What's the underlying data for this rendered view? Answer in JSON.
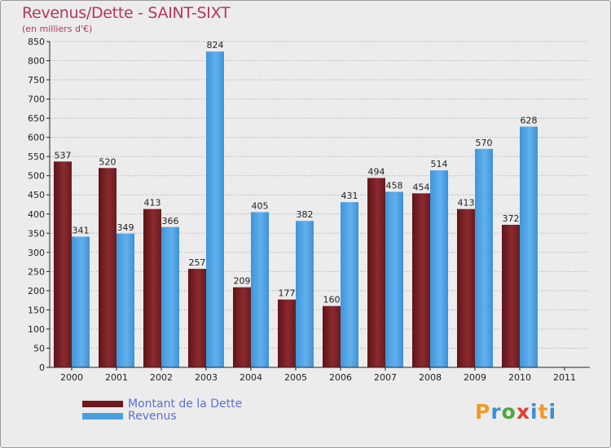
{
  "title": "Revenus/Dette - SAINT-SIXT",
  "subtitle": "(en milliers d'€)",
  "logo": {
    "text": "Proxiti",
    "letters": [
      "P",
      "r",
      "o",
      "x",
      "i",
      "t",
      "i"
    ],
    "colors": [
      "#f09a2a",
      "#3b8fd4",
      "#4aa83c",
      "#e23c2c",
      "#3b8fd4",
      "#f09a2a",
      "#3b8fd4"
    ]
  },
  "colors": {
    "dette": "#7a1f24",
    "dette_light": "#9e3b40",
    "revenus": "#4a9fe0",
    "revenus_light": "#6fb8f0",
    "axis": "#222222",
    "grid": "#9a9a9a"
  },
  "chart_data": {
    "type": "bar",
    "title": "Revenus/Dette - SAINT-SIXT",
    "ylabel": "(en milliers d'€)",
    "xlabel": "",
    "ylim": [
      0,
      850
    ],
    "yticks": [
      0,
      50,
      100,
      150,
      200,
      250,
      300,
      350,
      400,
      450,
      500,
      550,
      600,
      650,
      700,
      750,
      800,
      850
    ],
    "grid": true,
    "legend_position": "bottom-left",
    "categories": [
      "2000",
      "2001",
      "2002",
      "2003",
      "2004",
      "2005",
      "2006",
      "2007",
      "2008",
      "2009",
      "2010",
      "2011"
    ],
    "series": [
      {
        "name": "Montant de la Dette",
        "key": "dette",
        "values": [
          537,
          520,
          413,
          257,
          209,
          177,
          160,
          494,
          454,
          413,
          372,
          null
        ]
      },
      {
        "name": "Revenus",
        "key": "revenus",
        "values": [
          341,
          349,
          366,
          824,
          405,
          382,
          431,
          458,
          514,
          570,
          628,
          null
        ]
      }
    ]
  }
}
